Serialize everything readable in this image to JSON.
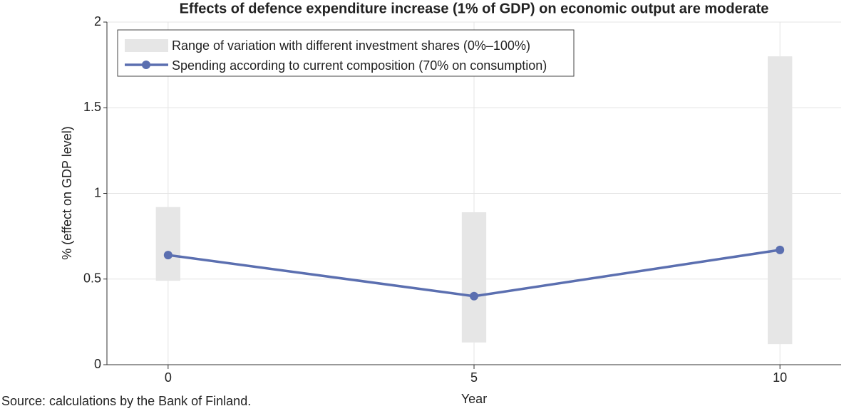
{
  "chart_data": {
    "type": "line",
    "title": "Effects of defence expenditure increase (1% of GDP) on economic output are moderate",
    "xlabel": "Year",
    "ylabel": "% (effect on GDP level)",
    "source": "Source: calculations by the Bank of Finland.",
    "x": [
      0,
      5,
      10
    ],
    "range": {
      "name": "Range of variation with different investment shares (0%–100%)",
      "color": "#e6e6e6",
      "low": [
        0.49,
        0.13,
        0.12
      ],
      "high": [
        0.92,
        0.89,
        1.8
      ]
    },
    "series": [
      {
        "name": "Spending according to current composition (70% on consumption)",
        "color": "#5b6fb0",
        "values": [
          0.64,
          0.4,
          0.67
        ]
      }
    ],
    "xlim": [
      -1,
      11
    ],
    "ylim": [
      0,
      2
    ],
    "xticks": [
      0,
      5,
      10
    ],
    "yticks": [
      0,
      0.5,
      1,
      1.5,
      2
    ],
    "grid": true
  }
}
